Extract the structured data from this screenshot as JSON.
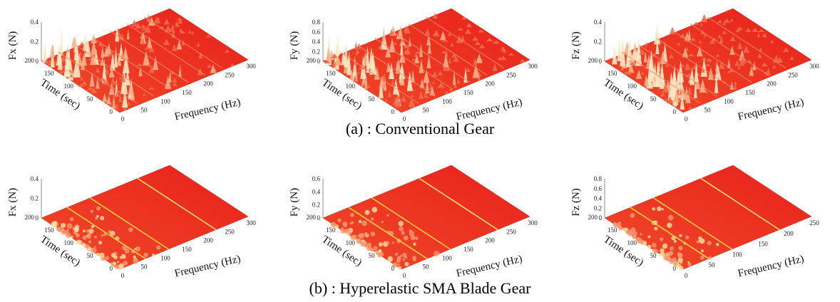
{
  "figure": {
    "rows": [
      {
        "caption": "(a) : Conventional Gear",
        "panels": [
          {
            "z_label": "Fx (N)",
            "z_ticks": [
              0,
              0.2,
              0.4
            ],
            "time_label": "Time (sec)",
            "time_ticks": [
              0,
              50,
              100,
              150,
              200
            ],
            "freq_label": "Frequency (Hz)",
            "freq_ticks": [
              0,
              50,
              100,
              150,
              200,
              250,
              300
            ]
          },
          {
            "z_label": "Fy (N)",
            "z_ticks": [
              0,
              0.2,
              0.4,
              0.6,
              0.8
            ],
            "time_label": "Time (sec)",
            "time_ticks": [
              0,
              50,
              100,
              150,
              200
            ],
            "freq_label": "Frequency (Hz)",
            "freq_ticks": [
              0,
              50,
              100,
              150,
              200,
              250,
              300
            ]
          },
          {
            "z_label": "Fz (N)",
            "z_ticks": [
              0,
              0.2,
              0.4
            ],
            "time_label": "Time (sec)",
            "time_ticks": [
              0,
              50,
              100,
              150,
              200
            ],
            "freq_label": "Frequency (Hz)",
            "freq_ticks": [
              0,
              50,
              100,
              150,
              200,
              250,
              300
            ]
          }
        ]
      },
      {
        "caption": "(b) : Hyperelastic SMA Blade Gear",
        "panels": [
          {
            "z_label": "Fx (N)",
            "z_ticks": [
              0,
              0.2,
              0.4
            ],
            "time_label": "Time (sec)",
            "time_ticks": [
              0,
              50,
              100,
              150,
              200
            ],
            "freq_label": "Frequency (Hz)",
            "freq_ticks": [
              0,
              50,
              100,
              150,
              200,
              250,
              300
            ]
          },
          {
            "z_label": "Fy (N)",
            "z_ticks": [
              0,
              0.2,
              0.4,
              0.6
            ],
            "time_label": "Time (sec)",
            "time_ticks": [
              0,
              50,
              100,
              150,
              200
            ],
            "freq_label": "Frequency (Hz)",
            "freq_ticks": [
              0,
              50,
              100,
              150,
              200,
              250,
              300
            ]
          },
          {
            "z_label": "Fz (N)",
            "z_ticks": [
              0,
              0.2,
              0.4,
              0.6,
              0.8
            ],
            "time_label": "Time (sec)",
            "time_ticks": [
              0,
              50,
              100,
              150,
              200
            ],
            "freq_label": "Frequency (Hz)",
            "freq_ticks": [
              0,
              50,
              100,
              150,
              200,
              250
            ]
          }
        ]
      }
    ]
  }
}
